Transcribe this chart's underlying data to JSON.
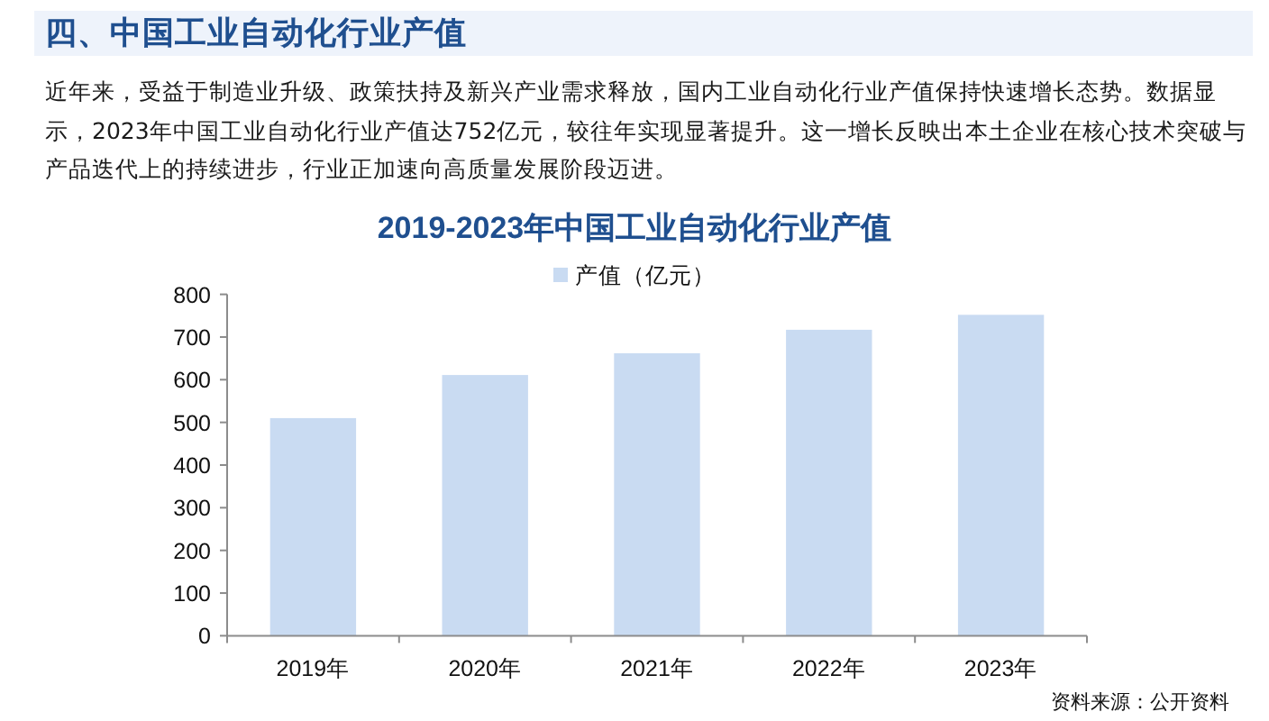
{
  "chart_data": {
    "type": "bar",
    "title": "2019-2023年中国工业自动化行业产值",
    "categories": [
      "2019年",
      "2020年",
      "2021年",
      "2022年",
      "2023年"
    ],
    "series": [
      {
        "name": "产值（亿元）",
        "color": "#c9dbf2",
        "values": [
          510,
          611,
          662,
          717,
          752
        ]
      }
    ],
    "ylim": [
      0,
      800
    ],
    "yticks": [
      0,
      100,
      200,
      300,
      400,
      500,
      600,
      700,
      800
    ],
    "legend": "top",
    "annotations": [
      "四、中国工业自动化行业产值",
      "近年来，受益于制造业升级、政策扶持及新兴产业需求释放，国内工业自动化行业产值保持快速增长态势。数据显示，2023年中国工业自动化行业产值达752亿元，较往年实现显著提升。这一增长反映出本土企业在核心技术突破与产品迭代上的持续进步，行业正加速向高质量发展阶段迈进。",
      "资料来源：公开资料"
    ]
  }
}
